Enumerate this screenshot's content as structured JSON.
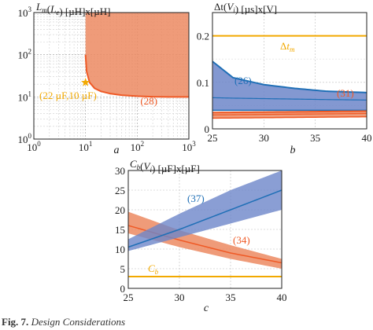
{
  "colors": {
    "blue": "#1f6fb6",
    "blue_band": "#6d86c9",
    "orange": "#ef5a26",
    "orange_band": "#ec8a62",
    "gold": "#f2a900"
  },
  "chart_data": [
    {
      "type": "area",
      "panel_label": "a",
      "ylabel": "L_m(L_e) [µH]x[µH]",
      "xscale": "log",
      "yscale": "log",
      "xlim": [
        1,
        1000
      ],
      "ylim": [
        1,
        1000
      ],
      "xticks": [
        "10^0",
        "10^1",
        "10^2",
        "10^3"
      ],
      "yticks": [
        "10^0",
        "10^1",
        "10^2",
        "10^3"
      ],
      "grid": true,
      "region": {
        "boundary_x": [
          10,
          10,
          10.5,
          12,
          15,
          20,
          30,
          50,
          100,
          200,
          400,
          1000
        ],
        "boundary_y": [
          1000,
          100,
          40,
          22,
          16,
          13.5,
          12,
          11,
          10.4,
          10.1,
          10,
          10
        ]
      },
      "point": {
        "x": 10,
        "y": 22,
        "label": "(22 µF,10 µF)"
      },
      "annotations": [
        "(28)"
      ]
    },
    {
      "type": "area",
      "panel_label": "b",
      "ylabel": "Δt(V_i) [µs]x[V]",
      "xlim": [
        25,
        40
      ],
      "ylim": [
        0,
        0.25
      ],
      "xticks": [
        25,
        30,
        35,
        40
      ],
      "yticks": [
        0,
        0.1,
        0.2
      ],
      "grid": true,
      "series": [
        {
          "name": "(26)",
          "x": [
            25,
            27,
            30,
            33,
            36,
            40
          ],
          "line": [
            0.067,
            0.066,
            0.065,
            0.064,
            0.063,
            0.062
          ],
          "upper": [
            0.145,
            0.11,
            0.095,
            0.087,
            0.081,
            0.078
          ],
          "lower": [
            0.04,
            0.04,
            0.04,
            0.04,
            0.04,
            0.04
          ]
        },
        {
          "name": "(31)",
          "x": [
            25,
            30,
            35,
            40
          ],
          "line": [
            0.03,
            0.031,
            0.032,
            0.033
          ],
          "upper": [
            0.035,
            0.036,
            0.037,
            0.038
          ],
          "lower": [
            0.023,
            0.024,
            0.025,
            0.026
          ]
        },
        {
          "name": "Δt_m",
          "x": [
            25,
            40
          ],
          "line": [
            0.2,
            0.2
          ]
        }
      ]
    },
    {
      "type": "area",
      "panel_label": "c",
      "ylabel": "C_b(V_i) [µF]x[µF]",
      "xlim": [
        25,
        40
      ],
      "ylim": [
        0,
        30
      ],
      "xticks": [
        25,
        30,
        35,
        40
      ],
      "yticks": [
        0,
        5,
        10,
        15,
        20,
        25,
        30
      ],
      "grid": true,
      "series": [
        {
          "name": "(37)",
          "x": [
            25,
            30,
            35,
            40
          ],
          "line": [
            10.5,
            15,
            20,
            25
          ],
          "upper": [
            12.5,
            19,
            25,
            30
          ],
          "lower": [
            9.5,
            13,
            16.5,
            20
          ]
        },
        {
          "name": "(34)",
          "x": [
            25,
            30,
            35,
            40
          ],
          "line": [
            16,
            12.3,
            9,
            6.5
          ],
          "upper": [
            19.5,
            14.8,
            11,
            7.5
          ],
          "lower": [
            14,
            10.5,
            7.5,
            5
          ]
        },
        {
          "name": "C_b",
          "x": [
            25,
            40
          ],
          "line": [
            3,
            3
          ]
        }
      ]
    }
  ],
  "caption": {
    "prefix": "Fig. 7.",
    "text": "Design Considerations"
  }
}
